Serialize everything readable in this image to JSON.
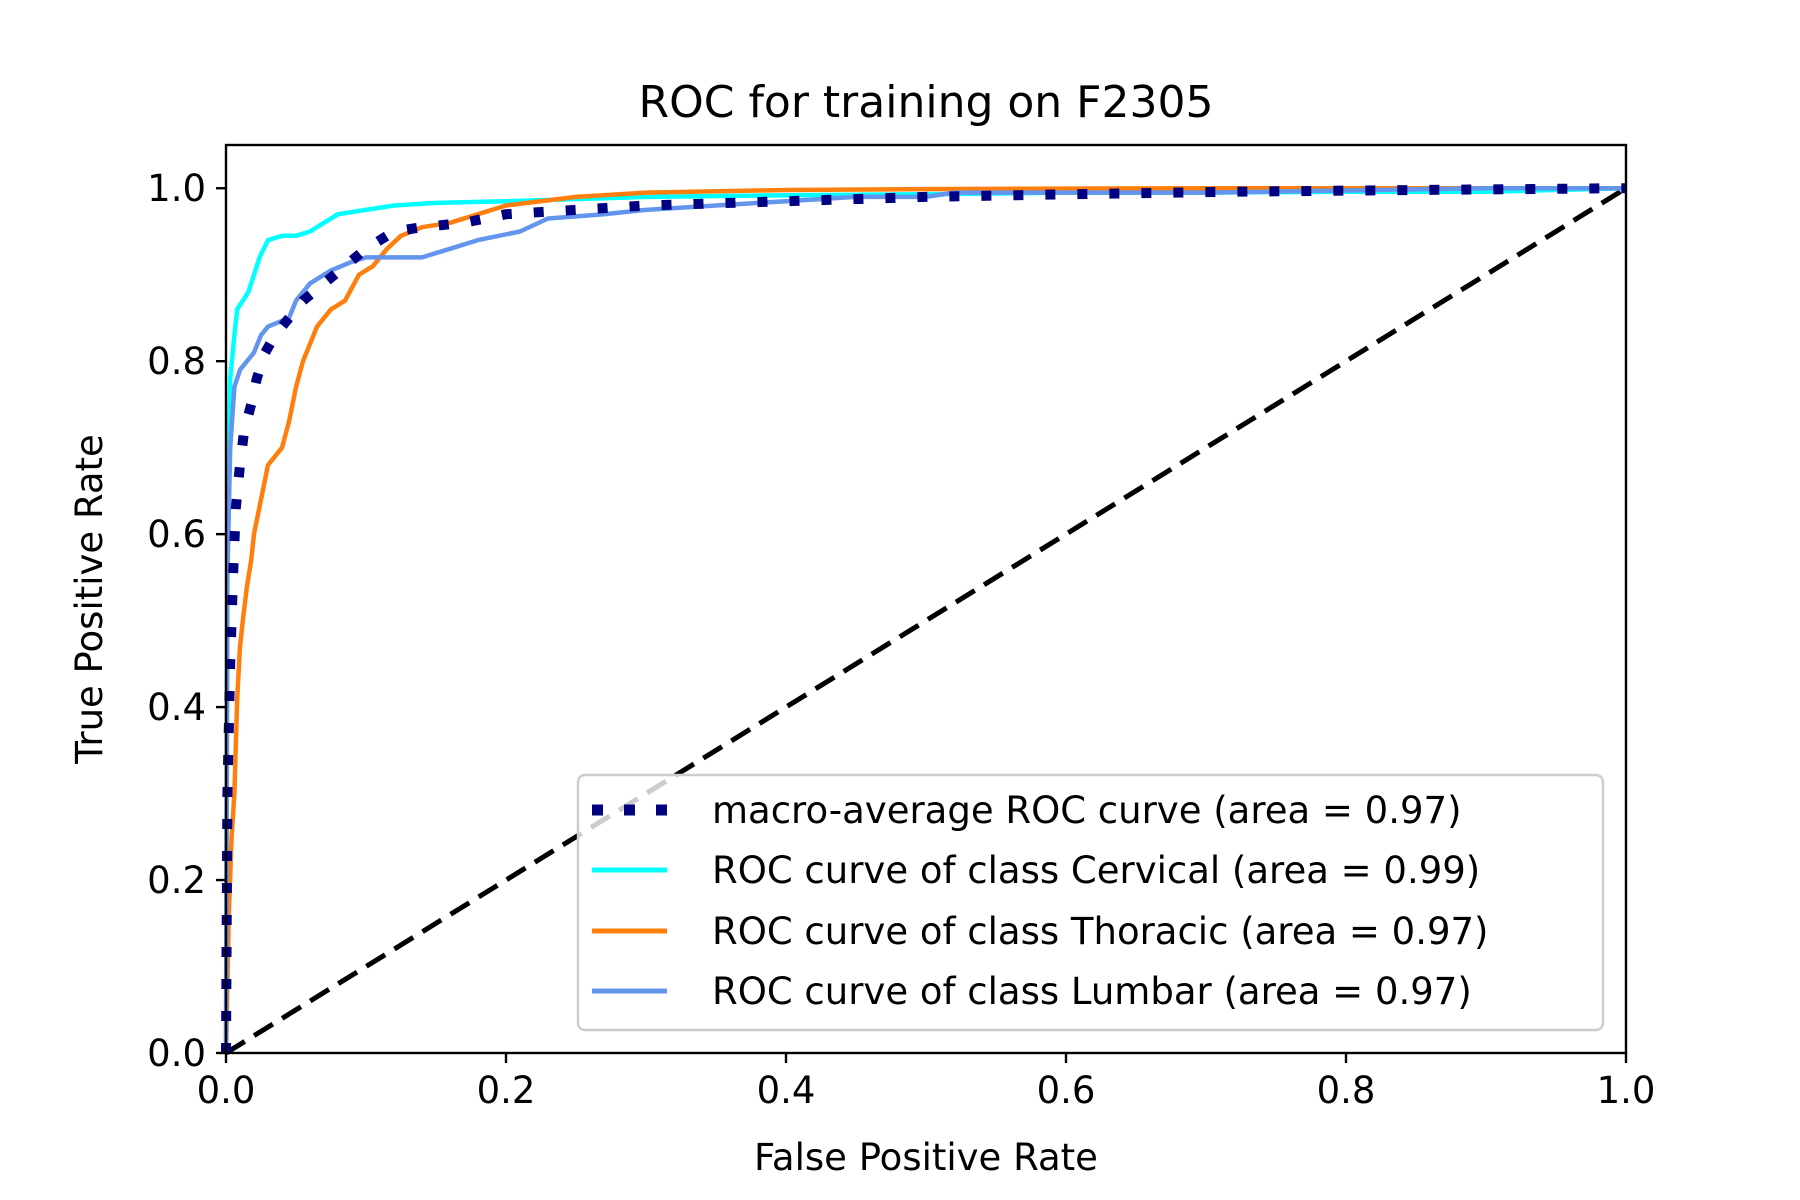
{
  "chart_data": {
    "type": "line",
    "title": "ROC for training on F2305",
    "xlabel": "False Positive Rate",
    "ylabel": "True Positive Rate",
    "xlim": [
      0.0,
      1.0
    ],
    "ylim": [
      0.0,
      1.05
    ],
    "x_ticks": [
      "0.0",
      "0.2",
      "0.4",
      "0.6",
      "0.8",
      "1.0"
    ],
    "y_ticks": [
      "0.0",
      "0.2",
      "0.4",
      "0.6",
      "0.8",
      "1.0"
    ],
    "grid": false,
    "legend_position": "lower-right",
    "series": [
      {
        "name": "macro-average ROC curve (area = 0.97)",
        "color": "#000080",
        "style": "dotted",
        "points": [
          [
            0.0,
            0.0
          ],
          [
            0.001,
            0.3
          ],
          [
            0.003,
            0.45
          ],
          [
            0.005,
            0.55
          ],
          [
            0.007,
            0.63
          ],
          [
            0.01,
            0.68
          ],
          [
            0.013,
            0.72
          ],
          [
            0.018,
            0.75
          ],
          [
            0.022,
            0.78
          ],
          [
            0.028,
            0.81
          ],
          [
            0.035,
            0.83
          ],
          [
            0.045,
            0.85
          ],
          [
            0.055,
            0.87
          ],
          [
            0.07,
            0.89
          ],
          [
            0.085,
            0.91
          ],
          [
            0.1,
            0.93
          ],
          [
            0.12,
            0.95
          ],
          [
            0.14,
            0.955
          ],
          [
            0.17,
            0.96
          ],
          [
            0.2,
            0.97
          ],
          [
            0.25,
            0.975
          ],
          [
            0.3,
            0.98
          ],
          [
            0.4,
            0.985
          ],
          [
            0.5,
            0.99
          ],
          [
            0.6,
            0.993
          ],
          [
            0.72,
            0.996
          ],
          [
            0.85,
            0.998
          ],
          [
            1.0,
            1.0
          ]
        ]
      },
      {
        "name": "ROC curve of class Cervical (area = 0.99)",
        "color": "#00ffff",
        "style": "solid",
        "points": [
          [
            0.0,
            0.0
          ],
          [
            0.001,
            0.6
          ],
          [
            0.003,
            0.78
          ],
          [
            0.006,
            0.83
          ],
          [
            0.008,
            0.86
          ],
          [
            0.012,
            0.87
          ],
          [
            0.016,
            0.88
          ],
          [
            0.02,
            0.9
          ],
          [
            0.024,
            0.92
          ],
          [
            0.03,
            0.94
          ],
          [
            0.04,
            0.945
          ],
          [
            0.05,
            0.945
          ],
          [
            0.06,
            0.95
          ],
          [
            0.07,
            0.96
          ],
          [
            0.08,
            0.97
          ],
          [
            0.1,
            0.975
          ],
          [
            0.12,
            0.98
          ],
          [
            0.15,
            0.983
          ],
          [
            0.2,
            0.985
          ],
          [
            0.3,
            0.99
          ],
          [
            0.4,
            0.992
          ],
          [
            0.5,
            0.993
          ],
          [
            0.6,
            0.995
          ],
          [
            0.7,
            0.995
          ],
          [
            0.8,
            0.996
          ],
          [
            0.9,
            0.996
          ],
          [
            1.0,
            1.0
          ]
        ]
      },
      {
        "name": "ROC curve of class Thoracic (area = 0.97)",
        "color": "#ff7f0e",
        "style": "solid",
        "points": [
          [
            0.0,
            0.0
          ],
          [
            0.002,
            0.16
          ],
          [
            0.004,
            0.25
          ],
          [
            0.006,
            0.3
          ],
          [
            0.008,
            0.41
          ],
          [
            0.01,
            0.47
          ],
          [
            0.012,
            0.5
          ],
          [
            0.015,
            0.54
          ],
          [
            0.018,
            0.57
          ],
          [
            0.02,
            0.6
          ],
          [
            0.025,
            0.64
          ],
          [
            0.03,
            0.68
          ],
          [
            0.04,
            0.7
          ],
          [
            0.045,
            0.73
          ],
          [
            0.05,
            0.77
          ],
          [
            0.055,
            0.8
          ],
          [
            0.06,
            0.82
          ],
          [
            0.065,
            0.84
          ],
          [
            0.075,
            0.86
          ],
          [
            0.085,
            0.87
          ],
          [
            0.095,
            0.9
          ],
          [
            0.105,
            0.91
          ],
          [
            0.115,
            0.93
          ],
          [
            0.125,
            0.945
          ],
          [
            0.14,
            0.955
          ],
          [
            0.16,
            0.96
          ],
          [
            0.18,
            0.97
          ],
          [
            0.2,
            0.98
          ],
          [
            0.25,
            0.99
          ],
          [
            0.3,
            0.995
          ],
          [
            0.4,
            0.998
          ],
          [
            0.5,
            0.999
          ],
          [
            0.7,
            1.0
          ],
          [
            1.0,
            1.0
          ]
        ]
      },
      {
        "name": "ROC curve of class Lumbar (area = 0.97)",
        "color": "#6495ed",
        "style": "solid",
        "points": [
          [
            0.0,
            0.0
          ],
          [
            0.001,
            0.55
          ],
          [
            0.003,
            0.7
          ],
          [
            0.006,
            0.77
          ],
          [
            0.01,
            0.79
          ],
          [
            0.015,
            0.8
          ],
          [
            0.02,
            0.81
          ],
          [
            0.025,
            0.83
          ],
          [
            0.03,
            0.84
          ],
          [
            0.045,
            0.85
          ],
          [
            0.05,
            0.87
          ],
          [
            0.06,
            0.89
          ],
          [
            0.075,
            0.905
          ],
          [
            0.09,
            0.915
          ],
          [
            0.1,
            0.92
          ],
          [
            0.14,
            0.92
          ],
          [
            0.16,
            0.93
          ],
          [
            0.18,
            0.94
          ],
          [
            0.21,
            0.95
          ],
          [
            0.23,
            0.965
          ],
          [
            0.27,
            0.97
          ],
          [
            0.3,
            0.975
          ],
          [
            0.35,
            0.98
          ],
          [
            0.4,
            0.985
          ],
          [
            0.45,
            0.99
          ],
          [
            0.5,
            0.99
          ],
          [
            0.52,
            0.995
          ],
          [
            0.7,
            0.995
          ],
          [
            0.9,
            1.0
          ],
          [
            1.0,
            1.0
          ]
        ]
      },
      {
        "color": "#000000",
        "style": "dashed",
        "points": [
          [
            0.0,
            0.0
          ],
          [
            1.0,
            1.0
          ]
        ]
      }
    ]
  }
}
